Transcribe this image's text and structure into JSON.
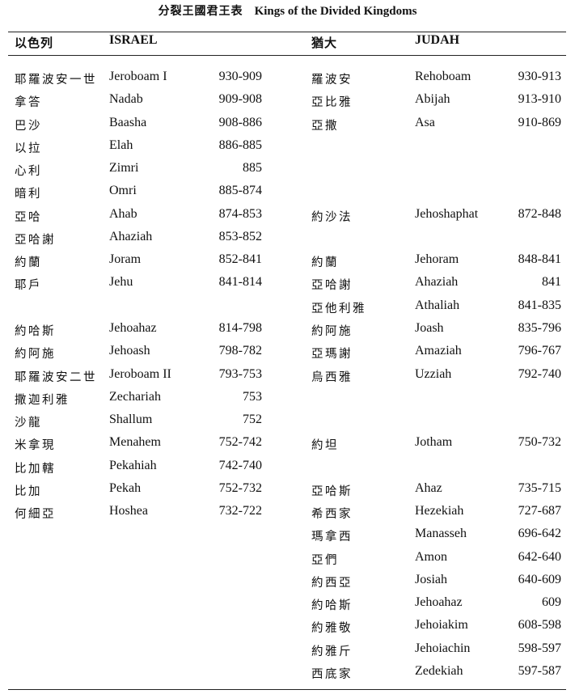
{
  "title": {
    "zh": "分裂王國君王表",
    "en": "Kings of the Divided Kingdoms"
  },
  "israel": {
    "header_zh": "以色列",
    "header_en": "ISRAEL",
    "rows": [
      {
        "zh": "耶羅波安一世",
        "en": "Jeroboam I",
        "years": "930-909"
      },
      {
        "zh": "拿答",
        "en": "Nadab",
        "years": "909-908"
      },
      {
        "zh": "巴沙",
        "en": "Baasha",
        "years": "908-886"
      },
      {
        "zh": "以拉",
        "en": "Elah",
        "years": "886-885"
      },
      {
        "zh": "心利",
        "en": "Zimri",
        "years": "885"
      },
      {
        "zh": "暗利",
        "en": "Omri",
        "years": "885-874"
      },
      {
        "zh": "亞哈",
        "en": "Ahab",
        "years": "874-853"
      },
      {
        "zh": "亞哈謝",
        "en": "Ahaziah",
        "years": "853-852"
      },
      {
        "zh": "約蘭",
        "en": "Joram",
        "years": "852-841"
      },
      {
        "zh": "耶戶",
        "en": "Jehu",
        "years": "841-814"
      },
      null,
      {
        "zh": "約哈斯",
        "en": "Jehoahaz",
        "years": "814-798"
      },
      {
        "zh": "約阿施",
        "en": "Jehoash",
        "years": "798-782"
      },
      {
        "zh": "耶羅波安二世",
        "en": "Jeroboam II",
        "years": "793-753"
      },
      {
        "zh": "撒迦利雅",
        "en": "Zechariah",
        "years": "753"
      },
      {
        "zh": "沙龍",
        "en": "Shallum",
        "years": "752"
      },
      {
        "zh": "米拿現",
        "en": "Menahem",
        "years": "752-742"
      },
      {
        "zh": "比加轄",
        "en": "Pekahiah",
        "years": "742-740"
      },
      {
        "zh": "比加",
        "en": "Pekah",
        "years": "752-732"
      },
      {
        "zh": "何細亞",
        "en": "Hoshea",
        "years": "732-722"
      }
    ]
  },
  "judah": {
    "header_zh": "猶大",
    "header_en": "JUDAH",
    "rows": [
      {
        "zh": "羅波安",
        "en": "Rehoboam",
        "years": "930-913"
      },
      {
        "zh": "亞比雅",
        "en": "Abijah",
        "years": "913-910"
      },
      {
        "zh": "亞撒",
        "en": "Asa",
        "years": "910-869"
      },
      null,
      null,
      null,
      {
        "zh": "約沙法",
        "en": "Jehoshaphat",
        "years": "872-848"
      },
      null,
      {
        "zh": "約蘭",
        "en": "Jehoram",
        "years": "848-841"
      },
      {
        "zh": "亞哈謝",
        "en": "Ahaziah",
        "years": "841"
      },
      {
        "zh": "亞他利雅",
        "en": "Athaliah",
        "years": "841-835"
      },
      {
        "zh": "約阿施",
        "en": "Joash",
        "years": "835-796"
      },
      {
        "zh": "亞瑪謝",
        "en": "Amaziah",
        "years": "796-767"
      },
      {
        "zh": "烏西雅",
        "en": "Uzziah",
        "years": "792-740"
      },
      null,
      null,
      {
        "zh": "約坦",
        "en": "Jotham",
        "years": "750-732"
      },
      null,
      {
        "zh": "亞哈斯",
        "en": "Ahaz",
        "years": "735-715"
      },
      {
        "zh": "希西家",
        "en": "Hezekiah",
        "years": "727-687"
      },
      {
        "zh": "瑪拿西",
        "en": "Manasseh",
        "years": "696-642"
      },
      {
        "zh": "亞們",
        "en": "Amon",
        "years": "642-640"
      },
      {
        "zh": "約西亞",
        "en": "Josiah",
        "years": "640-609"
      },
      {
        "zh": "約哈斯",
        "en": "Jehoahaz",
        "years": "609"
      },
      {
        "zh": "約雅敬",
        "en": "Jehoiakim",
        "years": "608-598"
      },
      {
        "zh": "約雅斤",
        "en": "Jehoiachin",
        "years": "598-597"
      },
      {
        "zh": "西底家",
        "en": "Zedekiah",
        "years": "597-587"
      }
    ]
  }
}
